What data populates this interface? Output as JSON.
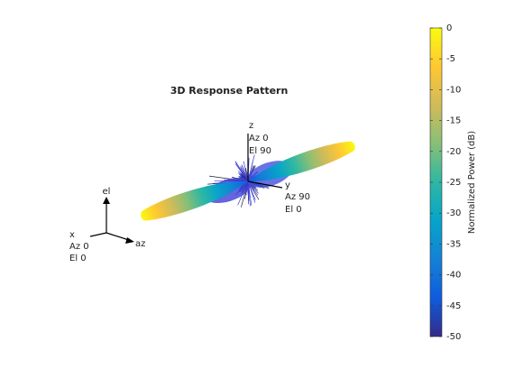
{
  "chart_data": {
    "type": "pattern3d",
    "title": "3D Response Pattern",
    "annotations": [
      "z",
      "Az 0",
      "El 90",
      "y",
      "Az 90",
      "El 0",
      "x",
      "Az 0",
      "El 0",
      "el",
      "az"
    ],
    "colorbar": {
      "label": "Normalized Power (dB)",
      "lim": [
        -50,
        0
      ],
      "ticks": [
        0,
        -5,
        -10,
        -15,
        -20,
        -25,
        -30,
        -35,
        -40,
        -45,
        -50
      ],
      "colormap": [
        "#352a87",
        "#0f5cdd",
        "#1481d6",
        "#06a4ca",
        "#2eb7a4",
        "#87bf77",
        "#d1bb59",
        "#fec832",
        "#f9fb0e"
      ]
    }
  }
}
